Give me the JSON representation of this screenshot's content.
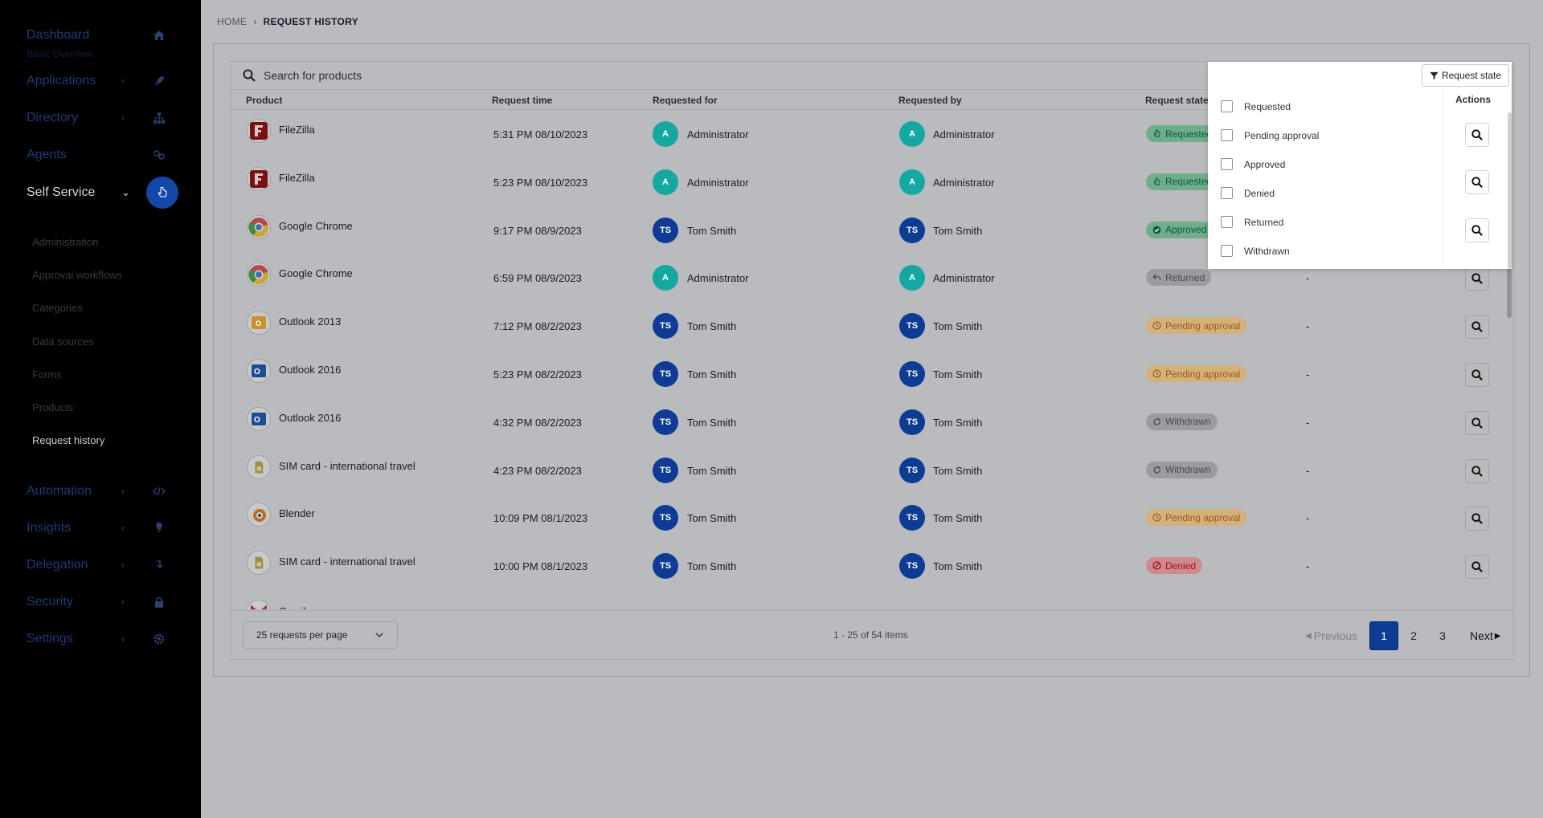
{
  "sidebar": {
    "dashboard": "Dashboard",
    "dashboard_sub": "Basic Overview",
    "items": [
      {
        "label": "Applications",
        "icon": "rocket-icon"
      },
      {
        "label": "Directory",
        "icon": "sitemap-icon"
      },
      {
        "label": "Agents",
        "icon": "agents-icon"
      },
      {
        "label": "Self Service",
        "icon": "hand-pointer-icon"
      },
      {
        "label": "Automation",
        "icon": "code-icon"
      },
      {
        "label": "Insights",
        "icon": "lightbulb-icon"
      },
      {
        "label": "Delegation",
        "icon": "delegation-icon"
      },
      {
        "label": "Security",
        "icon": "lock-icon"
      },
      {
        "label": "Settings",
        "icon": "gear-icon"
      }
    ],
    "sub_items": [
      "Administration",
      "Approval workflows",
      "Categories",
      "Data sources",
      "Forms",
      "Products",
      "Request history"
    ]
  },
  "breadcrumb": {
    "home": "HOME",
    "current": "REQUEST HISTORY"
  },
  "search": {
    "placeholder": "Search for products"
  },
  "table": {
    "headers": {
      "product": "Product",
      "time": "Request time",
      "for": "Requested for",
      "by": "Requested by",
      "state": "Request state",
      "actions": "Actions"
    },
    "rows": [
      {
        "product": "FileZilla",
        "icon": "filezilla-icon",
        "time": "5:31 PM 08/10/2023",
        "for_init": "A",
        "for": "Administrator",
        "by_init": "A",
        "by": "Administrator",
        "state": "Requested",
        "extra": ""
      },
      {
        "product": "FileZilla",
        "icon": "filezilla-icon",
        "time": "5:23 PM 08/10/2023",
        "for_init": "A",
        "for": "Administrator",
        "by_init": "A",
        "by": "Administrator",
        "state": "Requested",
        "extra": ""
      },
      {
        "product": "Google Chrome",
        "icon": "chrome-icon",
        "time": "9:17 PM 08/9/2023",
        "for_init": "TS",
        "for": "Tom Smith",
        "by_init": "TS",
        "by": "Tom Smith",
        "state": "Approved",
        "extra": ""
      },
      {
        "product": "Google Chrome",
        "icon": "chrome-icon",
        "time": "6:59 PM 08/9/2023",
        "for_init": "A",
        "for": "Administrator",
        "by_init": "A",
        "by": "Administrator",
        "state": "Returned",
        "extra": "-"
      },
      {
        "product": "Outlook 2013",
        "icon": "outlook-2013-icon",
        "time": "7:12 PM 08/2/2023",
        "for_init": "TS",
        "for": "Tom Smith",
        "by_init": "TS",
        "by": "Tom Smith",
        "state": "Pending approval",
        "extra": "-"
      },
      {
        "product": "Outlook 2016",
        "icon": "outlook-2016-icon",
        "time": "5:23 PM 08/2/2023",
        "for_init": "TS",
        "for": "Tom Smith",
        "by_init": "TS",
        "by": "Tom Smith",
        "state": "Pending approval",
        "extra": "-"
      },
      {
        "product": "Outlook 2016",
        "icon": "outlook-2016-icon",
        "time": "4:32 PM 08/2/2023",
        "for_init": "TS",
        "for": "Tom Smith",
        "by_init": "TS",
        "by": "Tom Smith",
        "state": "Withdrawn",
        "extra": "-"
      },
      {
        "product": "SIM card - international travel",
        "icon": "sim-card-icon",
        "time": "4:23 PM 08/2/2023",
        "for_init": "TS",
        "for": "Tom Smith",
        "by_init": "TS",
        "by": "Tom Smith",
        "state": "Withdrawn",
        "extra": "-"
      },
      {
        "product": "Blender",
        "icon": "blender-icon",
        "time": "10:09 PM 08/1/2023",
        "for_init": "TS",
        "for": "Tom Smith",
        "by_init": "TS",
        "by": "Tom Smith",
        "state": "Pending approval",
        "extra": "-"
      },
      {
        "product": "SIM card - international travel",
        "icon": "sim-card-icon",
        "time": "10:00 PM 08/1/2023",
        "for_init": "TS",
        "for": "Tom Smith",
        "by_init": "TS",
        "by": "Tom Smith",
        "state": "Denied",
        "extra": "-"
      }
    ],
    "partial_row": {
      "product": "Gmail"
    }
  },
  "footer": {
    "per_page": "25 requests per page",
    "count": "1 - 25 of 54 items",
    "prev": "Previous",
    "pages": [
      "1",
      "2",
      "3"
    ],
    "next": "Next"
  },
  "filter": {
    "button_label": "Request state",
    "options": [
      "Requested",
      "Pending approval",
      "Approved",
      "Denied",
      "Returned",
      "Withdrawn"
    ]
  }
}
